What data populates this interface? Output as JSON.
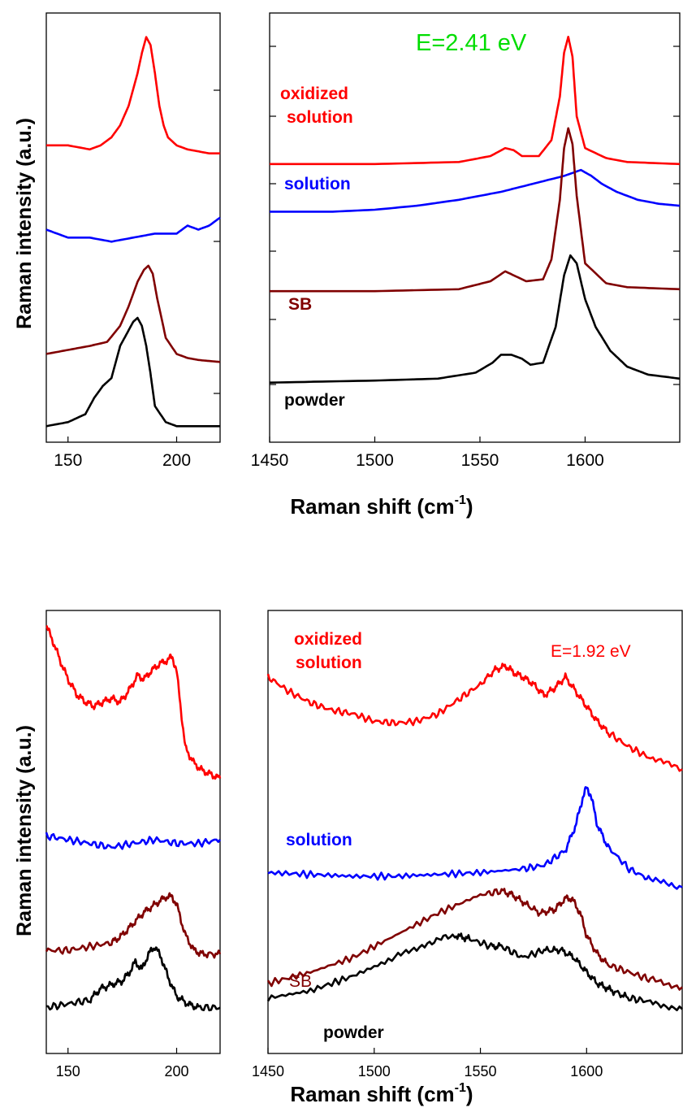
{
  "chart_data": [
    {
      "type": "line",
      "panel": "top-left",
      "xlim": [
        140,
        220
      ],
      "xticks": [
        "150",
        "200"
      ],
      "xtick_values": [
        150,
        200
      ],
      "ylabel": "Raman intensity (a.u.)",
      "y_ticks_labeled": false,
      "series": [
        {
          "color": "#ff0000",
          "x": [
            140,
            150,
            160,
            165,
            170,
            174,
            178,
            182,
            184,
            186,
            188,
            190,
            192,
            194,
            196,
            198,
            200,
            205,
            210,
            215,
            220
          ],
          "y": [
            0.72,
            0.72,
            0.71,
            0.72,
            0.74,
            0.77,
            0.82,
            0.9,
            0.95,
            0.99,
            0.97,
            0.9,
            0.82,
            0.77,
            0.74,
            0.73,
            0.72,
            0.71,
            0.705,
            0.7,
            0.7
          ]
        },
        {
          "color": "#0000ff",
          "x": [
            140,
            150,
            160,
            170,
            180,
            190,
            200,
            205,
            210,
            215,
            220
          ],
          "y": [
            0.51,
            0.49,
            0.49,
            0.48,
            0.49,
            0.5,
            0.5,
            0.52,
            0.51,
            0.52,
            0.54
          ]
        },
        {
          "color": "#800000",
          "x": [
            140,
            150,
            160,
            168,
            174,
            178,
            182,
            185,
            187,
            189,
            191,
            195,
            200,
            205,
            210,
            220
          ],
          "y": [
            0.2,
            0.21,
            0.22,
            0.23,
            0.27,
            0.32,
            0.38,
            0.41,
            0.42,
            0.4,
            0.34,
            0.24,
            0.2,
            0.19,
            0.185,
            0.18
          ]
        },
        {
          "color": "#000000",
          "x": [
            140,
            150,
            158,
            162,
            166,
            170,
            174,
            178,
            180,
            182,
            184,
            186,
            188,
            190,
            195,
            200,
            210,
            220
          ],
          "y": [
            0.02,
            0.03,
            0.05,
            0.09,
            0.12,
            0.14,
            0.22,
            0.26,
            0.28,
            0.29,
            0.27,
            0.22,
            0.15,
            0.07,
            0.03,
            0.02,
            0.02,
            0.02
          ]
        }
      ]
    },
    {
      "type": "line",
      "panel": "top-right",
      "xlim": [
        1450,
        1645
      ],
      "xticks": [
        "1450",
        "1500",
        "1550",
        "1600"
      ],
      "xtick_values": [
        1450,
        1500,
        1550,
        1600
      ],
      "xlabel": "Raman shift (cm",
      "xlabel_sup": "-1",
      "xlabel_tail": ")",
      "annotation": "E=2.41 eV",
      "annotation_color": "#00dd00",
      "y_ticks_labeled": false,
      "labels": [
        {
          "text": "oxidized",
          "color": "#ff0000"
        },
        {
          "text": "solution",
          "color": "#ff0000"
        },
        {
          "text": "solution",
          "color": "#0000ff"
        },
        {
          "text": "SB",
          "color": "#800000"
        },
        {
          "text": "powder",
          "color": "#000000"
        }
      ],
      "series": [
        {
          "name": "oxidized solution",
          "color": "#ff0000",
          "x": [
            1450,
            1500,
            1540,
            1555,
            1562,
            1566,
            1570,
            1578,
            1584,
            1588,
            1590,
            1592,
            1594,
            1596,
            1600,
            1610,
            1620,
            1645
          ],
          "y": [
            0.68,
            0.68,
            0.685,
            0.7,
            0.72,
            0.715,
            0.7,
            0.7,
            0.74,
            0.85,
            0.96,
            1.0,
            0.95,
            0.8,
            0.72,
            0.695,
            0.685,
            0.68
          ]
        },
        {
          "name": "solution",
          "color": "#0000ff",
          "x": [
            1450,
            1480,
            1500,
            1520,
            1540,
            1560,
            1575,
            1590,
            1598,
            1603,
            1608,
            1615,
            1625,
            1635,
            1645
          ],
          "y": [
            0.56,
            0.56,
            0.565,
            0.575,
            0.59,
            0.61,
            0.63,
            0.65,
            0.665,
            0.65,
            0.63,
            0.61,
            0.59,
            0.58,
            0.575
          ]
        },
        {
          "name": "SB",
          "color": "#800000",
          "x": [
            1450,
            1500,
            1540,
            1555,
            1562,
            1566,
            1572,
            1580,
            1584,
            1588,
            1590,
            1592,
            1594,
            1596,
            1600,
            1610,
            1620,
            1645
          ],
          "y": [
            0.36,
            0.36,
            0.365,
            0.385,
            0.41,
            0.4,
            0.385,
            0.39,
            0.44,
            0.59,
            0.72,
            0.77,
            0.73,
            0.6,
            0.43,
            0.38,
            0.37,
            0.365
          ]
        },
        {
          "name": "powder",
          "color": "#000000",
          "x": [
            1450,
            1500,
            1530,
            1548,
            1556,
            1560,
            1565,
            1570,
            1574,
            1580,
            1586,
            1590,
            1593,
            1596,
            1600,
            1605,
            1612,
            1620,
            1630,
            1645
          ],
          "y": [
            0.13,
            0.135,
            0.14,
            0.155,
            0.18,
            0.2,
            0.2,
            0.19,
            0.175,
            0.18,
            0.27,
            0.4,
            0.45,
            0.43,
            0.34,
            0.27,
            0.21,
            0.17,
            0.15,
            0.14
          ]
        }
      ]
    },
    {
      "type": "line",
      "panel": "bottom-left",
      "xlim": [
        140,
        220
      ],
      "xticks": [
        "150",
        "200"
      ],
      "xtick_values": [
        150,
        200
      ],
      "ylabel": "Raman intensity (a.u.)",
      "y_ticks_labeled": false,
      "series": [
        {
          "color": "#ff0000",
          "x": [
            140,
            143,
            147,
            150,
            154,
            158,
            162,
            166,
            170,
            174,
            178,
            182,
            185,
            188,
            192,
            196,
            198,
            200,
            204,
            208,
            212,
            216,
            220
          ],
          "y": [
            1.0,
            0.96,
            0.9,
            0.86,
            0.82,
            0.8,
            0.79,
            0.8,
            0.81,
            0.8,
            0.83,
            0.87,
            0.86,
            0.88,
            0.9,
            0.91,
            0.92,
            0.88,
            0.68,
            0.64,
            0.62,
            0.61,
            0.6
          ]
        },
        {
          "color": "#0000ff",
          "x": [
            140,
            150,
            160,
            170,
            180,
            190,
            200,
            210,
            220
          ],
          "y": [
            0.45,
            0.44,
            0.43,
            0.42,
            0.43,
            0.44,
            0.43,
            0.43,
            0.44
          ]
        },
        {
          "color": "#800000",
          "x": [
            140,
            150,
            160,
            170,
            175,
            180,
            185,
            190,
            195,
            198,
            200,
            204,
            208,
            212,
            220
          ],
          "y": [
            0.15,
            0.15,
            0.16,
            0.17,
            0.19,
            0.22,
            0.25,
            0.27,
            0.29,
            0.29,
            0.27,
            0.19,
            0.15,
            0.14,
            0.14
          ]
        },
        {
          "color": "#000000",
          "x": [
            140,
            150,
            160,
            165,
            170,
            175,
            178,
            181,
            184,
            187,
            190,
            193,
            196,
            200,
            205,
            210,
            220
          ],
          "y": [
            0.0,
            0.01,
            0.02,
            0.05,
            0.06,
            0.07,
            0.09,
            0.12,
            0.1,
            0.14,
            0.16,
            0.13,
            0.08,
            0.03,
            0.01,
            0.0,
            0.0
          ]
        }
      ]
    },
    {
      "type": "line",
      "panel": "bottom-right",
      "xlim": [
        1450,
        1645
      ],
      "xticks": [
        "1450",
        "1500",
        "1550",
        "1600"
      ],
      "xtick_values": [
        1450,
        1500,
        1550,
        1600
      ],
      "xlabel": "Raman shift (cm",
      "xlabel_sup": "-1",
      "xlabel_tail": ")",
      "annotation": "E=1.92 eV",
      "annotation_color": "#ff0000",
      "y_ticks_labeled": false,
      "labels": [
        {
          "text": "oxidized",
          "color": "#ff0000"
        },
        {
          "text": "solution",
          "color": "#ff0000"
        },
        {
          "text": "solution",
          "color": "#0000ff"
        },
        {
          "text": "SB",
          "color": "#800000"
        },
        {
          "text": "powder",
          "color": "#000000"
        }
      ],
      "series": [
        {
          "name": "oxidized solution",
          "color": "#ff0000",
          "x": [
            1450,
            1460,
            1470,
            1480,
            1490,
            1500,
            1510,
            1520,
            1530,
            1540,
            1550,
            1557,
            1562,
            1566,
            1570,
            1575,
            1580,
            1585,
            1590,
            1595,
            1600,
            1605,
            1610,
            1620,
            1630,
            1645
          ],
          "y": [
            0.9,
            0.86,
            0.83,
            0.81,
            0.8,
            0.78,
            0.775,
            0.78,
            0.8,
            0.84,
            0.88,
            0.92,
            0.93,
            0.91,
            0.9,
            0.88,
            0.85,
            0.87,
            0.9,
            0.86,
            0.82,
            0.78,
            0.75,
            0.71,
            0.68,
            0.65
          ]
        },
        {
          "name": "solution",
          "color": "#0000ff",
          "x": [
            1450,
            1470,
            1490,
            1510,
            1530,
            1550,
            1570,
            1580,
            1590,
            1595,
            1598,
            1600,
            1602,
            1605,
            1610,
            1620,
            1630,
            1645
          ],
          "y": [
            0.37,
            0.365,
            0.36,
            0.36,
            0.365,
            0.37,
            0.38,
            0.39,
            0.43,
            0.5,
            0.57,
            0.6,
            0.58,
            0.5,
            0.44,
            0.38,
            0.35,
            0.33
          ]
        },
        {
          "name": "SB",
          "color": "#800000",
          "x": [
            1450,
            1470,
            1490,
            1510,
            1530,
            1550,
            1560,
            1565,
            1570,
            1578,
            1585,
            1590,
            1593,
            1597,
            1600,
            1605,
            1610,
            1620,
            1630,
            1645
          ],
          "y": [
            0.07,
            0.1,
            0.14,
            0.2,
            0.26,
            0.31,
            0.32,
            0.31,
            0.29,
            0.26,
            0.27,
            0.3,
            0.3,
            0.26,
            0.2,
            0.15,
            0.12,
            0.1,
            0.08,
            0.06
          ]
        },
        {
          "name": "powder",
          "color": "#000000",
          "x": [
            1450,
            1470,
            1490,
            1510,
            1525,
            1538,
            1545,
            1555,
            1560,
            1570,
            1580,
            1588,
            1594,
            1600,
            1605,
            1612,
            1620,
            1630,
            1645
          ],
          "y": [
            0.03,
            0.05,
            0.09,
            0.14,
            0.18,
            0.2,
            0.19,
            0.17,
            0.17,
            0.14,
            0.16,
            0.16,
            0.14,
            0.1,
            0.07,
            0.05,
            0.03,
            0.02,
            0.0
          ]
        }
      ]
    }
  ]
}
